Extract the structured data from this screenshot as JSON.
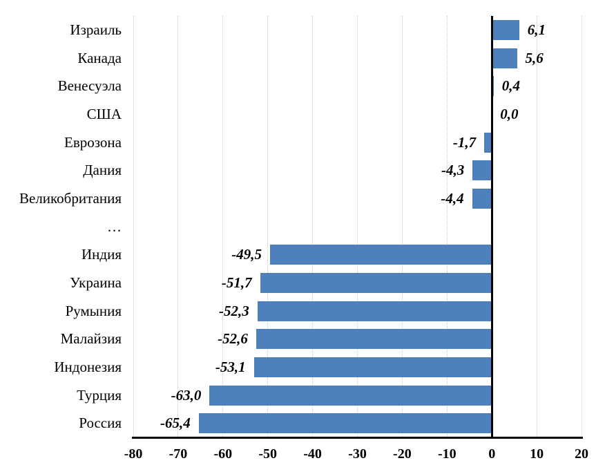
{
  "chart_data": {
    "type": "bar",
    "orientation": "horizontal",
    "title": "",
    "xlabel": "",
    "ylabel": "",
    "categories": [
      "Израиль",
      "Канада",
      "Венесуэла",
      "США",
      "Еврозона",
      "Дания",
      "Великобритания",
      "…",
      "Индия",
      "Украина",
      "Румыния",
      "Малайзия",
      "Индонезия",
      "Турция",
      "Россия"
    ],
    "values": [
      6.1,
      5.6,
      0.4,
      0.0,
      -1.7,
      -4.3,
      -4.4,
      null,
      -49.5,
      -51.7,
      -52.3,
      -52.6,
      -53.1,
      -63.0,
      -65.4
    ],
    "value_labels": [
      "6,1",
      "5,6",
      "0,4",
      "0,0",
      "-1,7",
      "-4,3",
      "-4,4",
      "",
      "-49,5",
      "-51,7",
      "-52,3",
      "-52,6",
      "-53,1",
      "-63,0",
      "-65,4"
    ],
    "xlim": [
      -80,
      20
    ],
    "xticks": [
      -80,
      -70,
      -60,
      -50,
      -40,
      -30,
      -20,
      -10,
      0,
      10,
      20
    ],
    "xtick_labels": [
      "-80",
      "-70",
      "-60",
      "-50",
      "-40",
      "-30",
      "-20",
      "-10",
      "0",
      "10",
      "20"
    ],
    "grid": true,
    "grid_style": "dotted-vertical",
    "legend": false,
    "decimal_separator": ",",
    "colors": {
      "bar": "#4E80BC",
      "grid": "#C6C6C6",
      "axis": "#000000",
      "text": "#000000",
      "background": "#FFFFFF"
    }
  }
}
